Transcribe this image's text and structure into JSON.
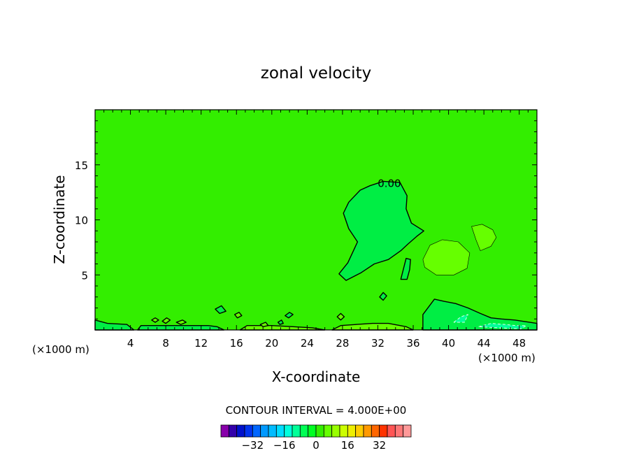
{
  "chart_data": {
    "type": "contour",
    "title": "zonal velocity",
    "xlabel": "X-coordinate",
    "ylabel": "Z-coordinate",
    "x_unit_label": "(×1000 m)",
    "x_unit_label_right": "(×1000 m)",
    "xlim": [
      0,
      50
    ],
    "ylim": [
      0,
      20
    ],
    "x_ticks": [
      4,
      8,
      12,
      16,
      20,
      24,
      28,
      32,
      36,
      40,
      44,
      48
    ],
    "y_ticks": [
      5,
      10,
      15
    ],
    "contour_label": "0.00",
    "contour_interval_text": "CONTOUR INTERVAL = 4.000E+00",
    "background_level_color": "#33ee00",
    "colorbar": {
      "colors": [
        "#8800aa",
        "#3300aa",
        "#0011cc",
        "#0033ee",
        "#0066ff",
        "#0099ff",
        "#00bbff",
        "#00ddff",
        "#00ffdd",
        "#00ff99",
        "#00ff55",
        "#00ff22",
        "#33ee00",
        "#66ff00",
        "#99ff00",
        "#ccff00",
        "#eeee00",
        "#ffcc00",
        "#ff9900",
        "#ff6600",
        "#ff3300",
        "#ff5555",
        "#ff7777",
        "#ff9999"
      ],
      "tick_values": [
        -32,
        -16,
        0,
        16,
        32
      ]
    },
    "regions": [
      {
        "id": "main-positive-lobe",
        "level_color": "#00ee44",
        "outline": [
          [
            31.1,
            13.1
          ],
          [
            32.6,
            13.5
          ],
          [
            34.5,
            13.4
          ],
          [
            35.3,
            12.2
          ],
          [
            35.2,
            11.0
          ],
          [
            35.8,
            9.7
          ],
          [
            37.2,
            9.0
          ],
          [
            36.4,
            8.5
          ],
          [
            35.4,
            7.8
          ],
          [
            34.6,
            7.2
          ],
          [
            33.2,
            6.4
          ],
          [
            31.6,
            6.0
          ],
          [
            30.1,
            5.2
          ],
          [
            28.4,
            4.5
          ],
          [
            27.6,
            5.1
          ],
          [
            28.6,
            6.1
          ],
          [
            29.7,
            8.0
          ],
          [
            28.7,
            9.2
          ],
          [
            28.1,
            10.6
          ],
          [
            28.7,
            11.6
          ],
          [
            30.0,
            12.7
          ]
        ]
      },
      {
        "id": "lobe-side-finger",
        "level_color": "#00ee44",
        "outline": [
          [
            34.6,
            4.6
          ],
          [
            35.2,
            6.5
          ],
          [
            35.7,
            6.4
          ],
          [
            35.6,
            5.5
          ],
          [
            35.3,
            4.6
          ]
        ]
      },
      {
        "id": "mid-right-bubble",
        "level_color": "#66ff00",
        "outline": [
          [
            37.1,
            6.4
          ],
          [
            37.9,
            7.7
          ],
          [
            39.3,
            8.2
          ],
          [
            41.1,
            8.0
          ],
          [
            42.4,
            7.0
          ],
          [
            42.1,
            5.6
          ],
          [
            40.6,
            5.0
          ],
          [
            38.6,
            5.0
          ],
          [
            37.3,
            5.7
          ]
        ]
      },
      {
        "id": "upper-right-bubble",
        "level_color": "#66ff00",
        "outline": [
          [
            42.6,
            9.4
          ],
          [
            43.8,
            9.6
          ],
          [
            45.0,
            9.1
          ],
          [
            45.4,
            8.4
          ],
          [
            44.8,
            7.6
          ],
          [
            43.6,
            7.2
          ],
          [
            43.1,
            8.2
          ]
        ]
      },
      {
        "id": "bottom-right-wedge",
        "level_color": "#00ee44",
        "outline": [
          [
            37.1,
            0.0
          ],
          [
            37.1,
            1.4
          ],
          [
            38.4,
            2.8
          ],
          [
            39.5,
            2.6
          ],
          [
            40.8,
            2.4
          ],
          [
            42.2,
            2.0
          ],
          [
            43.6,
            1.5
          ],
          [
            44.8,
            1.1
          ],
          [
            46.0,
            1.0
          ],
          [
            47.5,
            0.9
          ],
          [
            50.0,
            0.6
          ],
          [
            50.0,
            0.0
          ]
        ]
      },
      {
        "id": "dashed-cell-a",
        "level_color": "#00ff99",
        "outline": [
          [
            40.6,
            0.7
          ],
          [
            41.4,
            1.2
          ],
          [
            42.2,
            1.4
          ],
          [
            41.8,
            0.7
          ]
        ]
      },
      {
        "id": "dashed-cell-b",
        "level_color": "#00ff99",
        "outline": [
          [
            43.4,
            0.3
          ],
          [
            44.8,
            0.6
          ],
          [
            46.4,
            0.5
          ],
          [
            47.6,
            0.4
          ],
          [
            48.8,
            0.4
          ],
          [
            48.2,
            0.1
          ],
          [
            45.6,
            0.2
          ]
        ]
      },
      {
        "id": "bottom-low-strip",
        "level_color": "#66ff00",
        "outline": [
          [
            26.8,
            0.0
          ],
          [
            27.8,
            0.4
          ],
          [
            29.6,
            0.5
          ],
          [
            31.4,
            0.6
          ],
          [
            33.2,
            0.6
          ],
          [
            35.2,
            0.3
          ],
          [
            36.0,
            0.0
          ]
        ]
      },
      {
        "id": "bottom-low-strip-2",
        "level_color": "#66ff00",
        "outline": [
          [
            16.4,
            0.0
          ],
          [
            17.2,
            0.4
          ],
          [
            20.0,
            0.4
          ],
          [
            22.4,
            0.3
          ],
          [
            24.6,
            0.2
          ],
          [
            26.0,
            0.0
          ]
        ]
      },
      {
        "id": "small-blob-1",
        "level_color": "#00ee44",
        "outline": [
          [
            13.6,
            1.9
          ],
          [
            14.3,
            2.2
          ],
          [
            14.8,
            1.7
          ],
          [
            14.1,
            1.5
          ]
        ]
      },
      {
        "id": "small-blob-2",
        "level_color": "#00ee44",
        "outline": [
          [
            21.5,
            1.3
          ],
          [
            22.0,
            1.6
          ],
          [
            22.4,
            1.4
          ],
          [
            21.9,
            1.1
          ]
        ]
      },
      {
        "id": "small-blob-3",
        "level_color": "#00ee44",
        "outline": [
          [
            32.2,
            3.0
          ],
          [
            32.6,
            3.4
          ],
          [
            33.0,
            3.1
          ],
          [
            32.6,
            2.7
          ]
        ]
      },
      {
        "id": "small-blob-4",
        "level_color": "#66ff00",
        "outline": [
          [
            27.4,
            1.2
          ],
          [
            27.8,
            1.5
          ],
          [
            28.2,
            1.2
          ],
          [
            27.8,
            0.9
          ]
        ]
      },
      {
        "id": "small-blob-5",
        "level_color": "#66ff00",
        "outline": [
          [
            6.4,
            0.9
          ],
          [
            6.8,
            1.1
          ],
          [
            7.2,
            0.9
          ],
          [
            6.8,
            0.7
          ]
        ]
      },
      {
        "id": "small-blob-6",
        "level_color": "#66ff00",
        "outline": [
          [
            7.6,
            0.8
          ],
          [
            8.1,
            1.1
          ],
          [
            8.5,
            0.9
          ],
          [
            8.0,
            0.6
          ]
        ]
      },
      {
        "id": "small-blob-7",
        "level_color": "#66ff00",
        "outline": [
          [
            9.2,
            0.7
          ],
          [
            9.9,
            0.9
          ],
          [
            10.3,
            0.7
          ],
          [
            9.7,
            0.5
          ]
        ]
      },
      {
        "id": "small-blob-8",
        "level_color": "#66ff00",
        "outline": [
          [
            15.8,
            1.4
          ],
          [
            16.3,
            1.6
          ],
          [
            16.6,
            1.3
          ],
          [
            16.1,
            1.1
          ]
        ]
      },
      {
        "id": "small-blob-9",
        "level_color": "#66ff00",
        "outline": [
          [
            18.7,
            0.5
          ],
          [
            19.3,
            0.7
          ],
          [
            19.6,
            0.4
          ],
          [
            19.0,
            0.3
          ]
        ]
      },
      {
        "id": "small-blob-10",
        "level_color": "#00ee44",
        "outline": [
          [
            20.7,
            0.7
          ],
          [
            21.1,
            0.9
          ],
          [
            21.3,
            0.6
          ],
          [
            20.9,
            0.5
          ]
        ]
      },
      {
        "id": "left-bottom-sliver",
        "level_color": "#00ee44",
        "outline": [
          [
            0.0,
            0.0
          ],
          [
            0.0,
            0.9
          ],
          [
            1.4,
            0.6
          ],
          [
            3.6,
            0.5
          ],
          [
            4.4,
            0.0
          ]
        ]
      },
      {
        "id": "left-bottom-sliver-2",
        "level_color": "#00ee44",
        "outline": [
          [
            4.8,
            0.0
          ],
          [
            5.2,
            0.4
          ],
          [
            9.6,
            0.4
          ],
          [
            12.8,
            0.4
          ],
          [
            13.8,
            0.3
          ],
          [
            14.6,
            0.0
          ]
        ]
      }
    ]
  }
}
